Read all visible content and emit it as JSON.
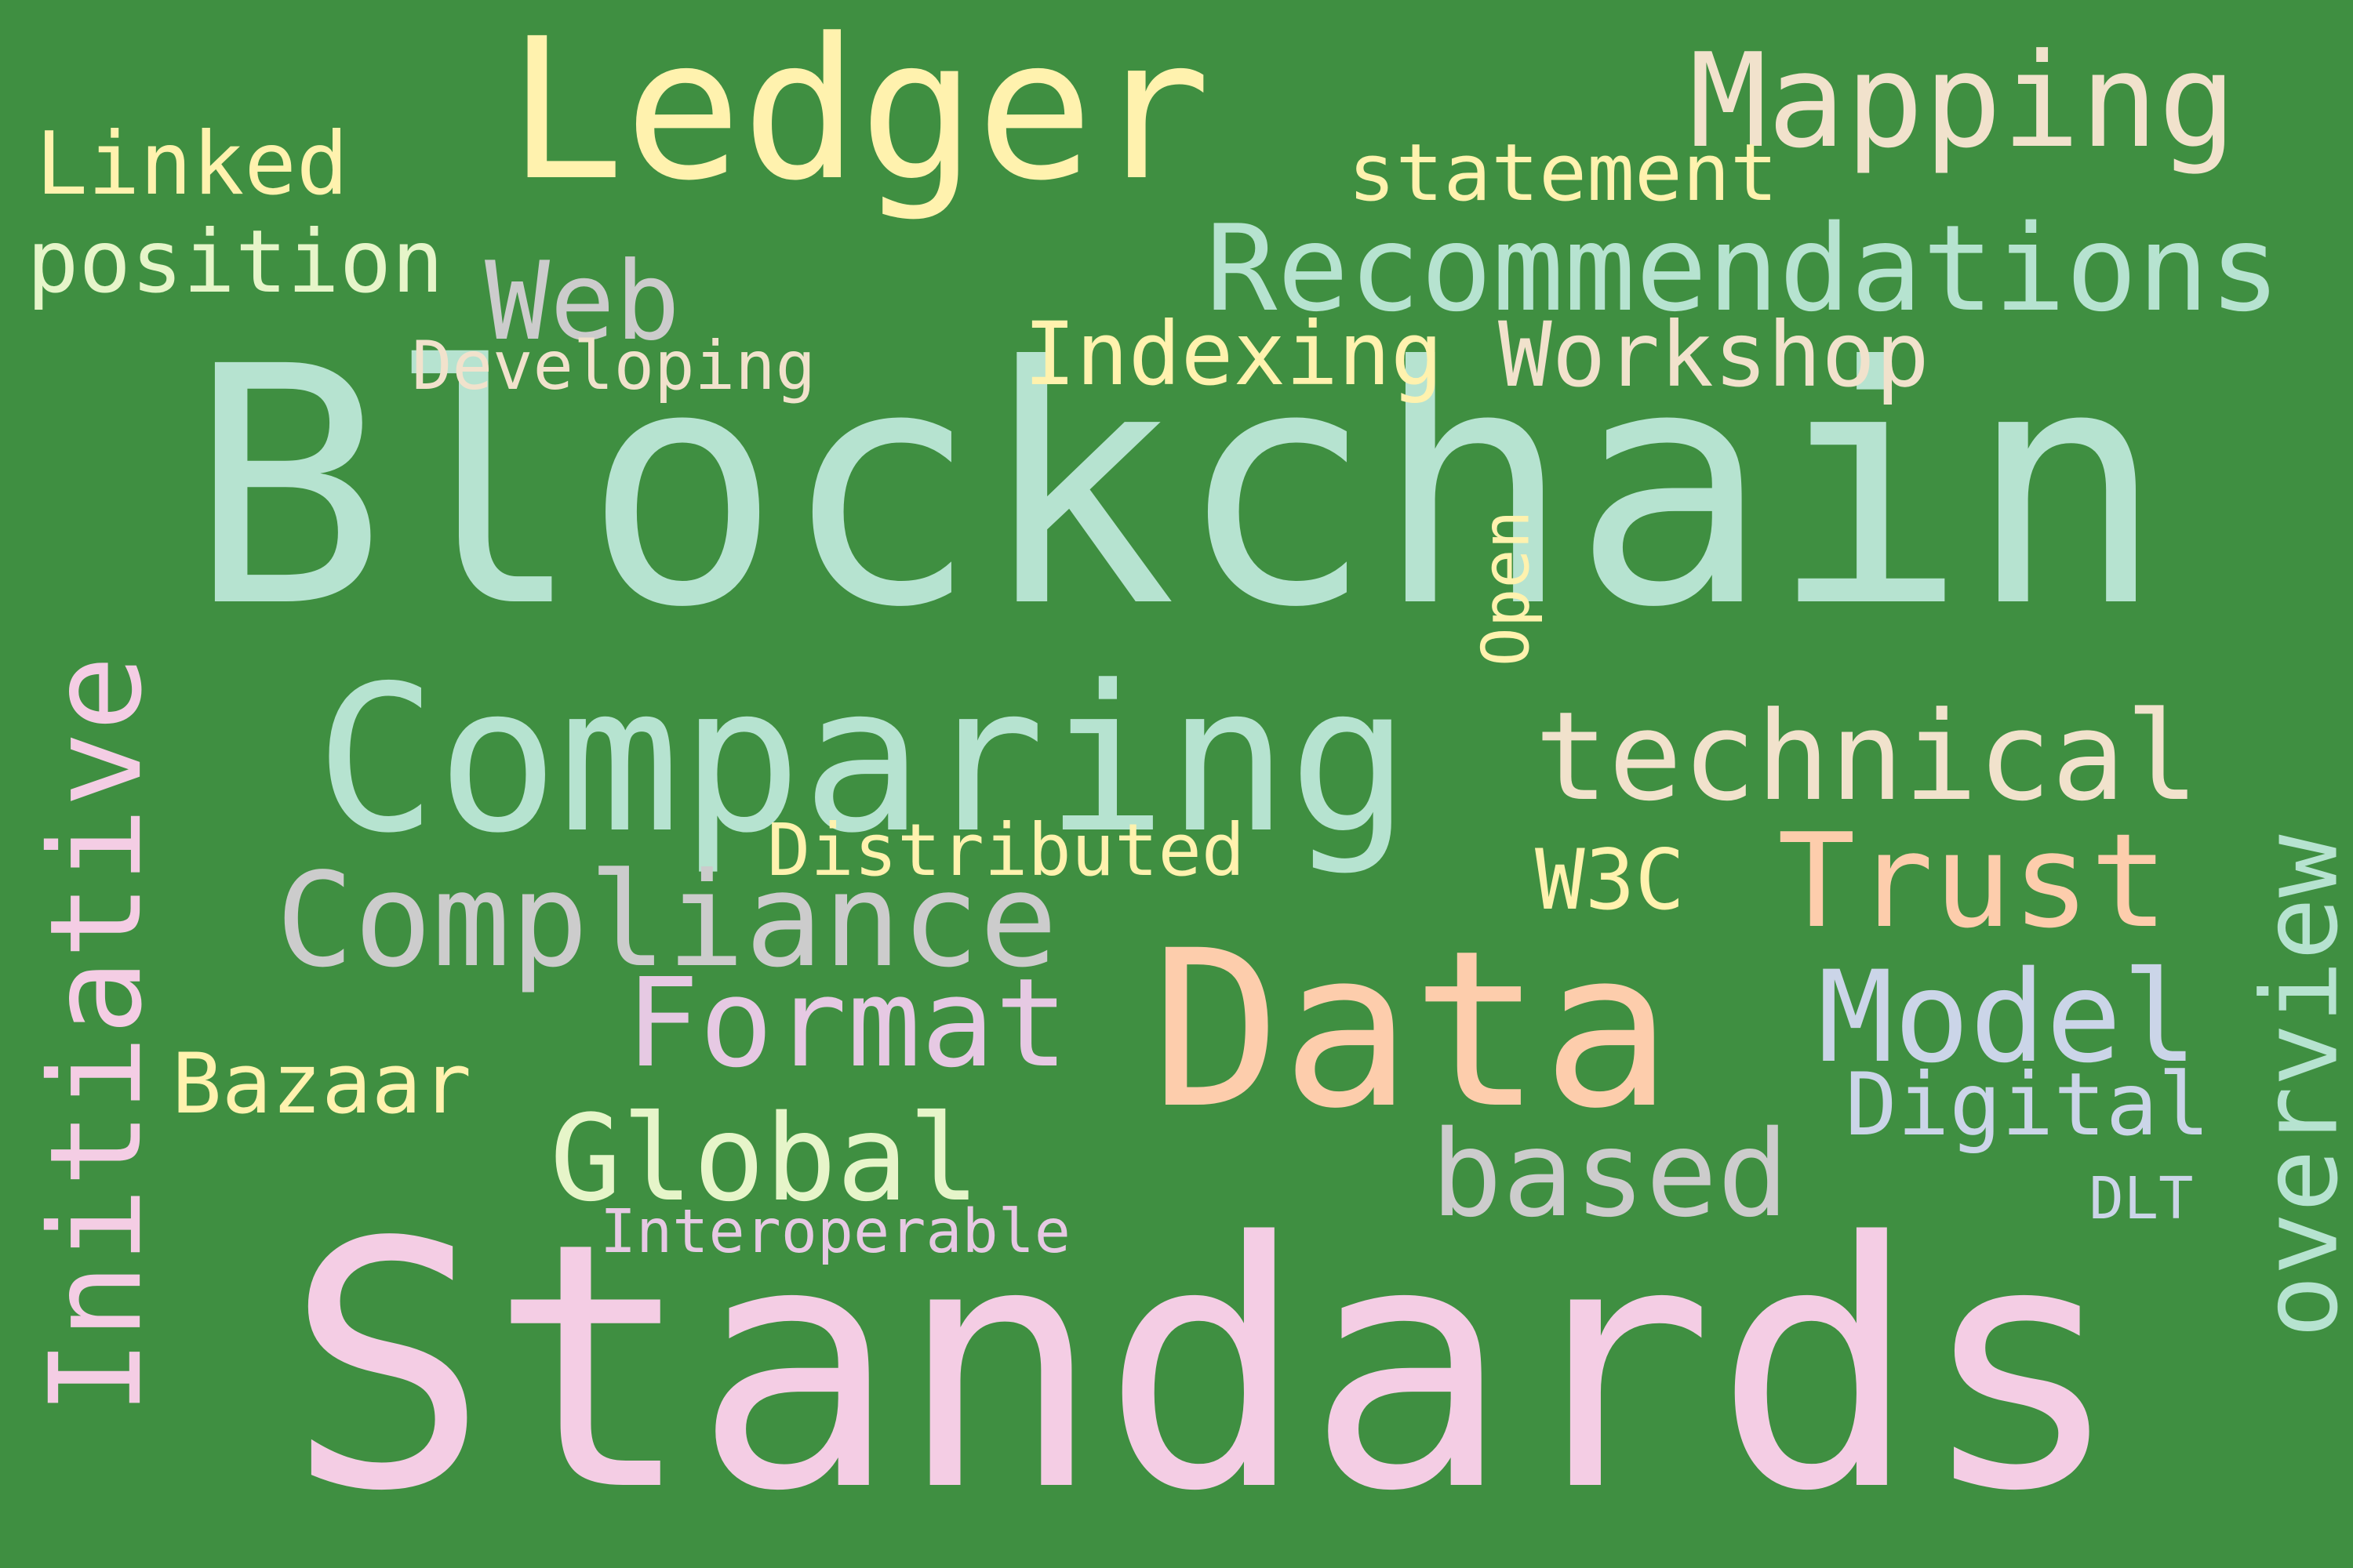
{
  "background": "#3f8f41",
  "words": [
    {
      "text": "Blockchain",
      "color": "#b6e3d0"
    },
    {
      "text": "Standards",
      "color": "#f4cde4"
    },
    {
      "text": "Ledger",
      "color": "#fff2ae"
    },
    {
      "text": "Data",
      "color": "#fdcdac"
    },
    {
      "text": "Comparing",
      "color": "#b6e3d0"
    },
    {
      "text": "Recommendations",
      "color": "#b6e3d0"
    },
    {
      "text": "Mapping",
      "color": "#f1e2cc"
    },
    {
      "text": "technical",
      "color": "#f1e2cc"
    },
    {
      "text": "Compliance",
      "color": "#cccccc"
    },
    {
      "text": "Trust",
      "color": "#fdcdac"
    },
    {
      "text": "Model",
      "color": "#cbd5e8"
    },
    {
      "text": "Format",
      "color": "#e6c9e3"
    },
    {
      "text": "Global",
      "color": "#e6f5c9"
    },
    {
      "text": "based",
      "color": "#cccccc"
    },
    {
      "text": "Web",
      "color": "#cccccc"
    },
    {
      "text": "Workshop",
      "color": "#f1e2cc"
    },
    {
      "text": "Indexing",
      "color": "#fff2ae"
    },
    {
      "text": "statement",
      "color": "#fff2ae"
    },
    {
      "text": "position",
      "color": "#e6f5c9"
    },
    {
      "text": "Linked",
      "color": "#fff2ae"
    },
    {
      "text": "Initiative",
      "color": "#f4cde4"
    },
    {
      "text": "overview",
      "color": "#b6e3d0"
    },
    {
      "text": "Distributed",
      "color": "#fff2ae"
    },
    {
      "text": "Bazaar",
      "color": "#fff2ae"
    },
    {
      "text": "W3C",
      "color": "#fff2ae"
    },
    {
      "text": "Digital",
      "color": "#cbd5e8"
    },
    {
      "text": "Developing",
      "color": "#f1e2cc"
    },
    {
      "text": "Interoperable",
      "color": "#e6c9e3"
    },
    {
      "text": "DLT",
      "color": "#cbd5e8"
    },
    {
      "text": "Open",
      "color": "#fff2ae"
    }
  ]
}
